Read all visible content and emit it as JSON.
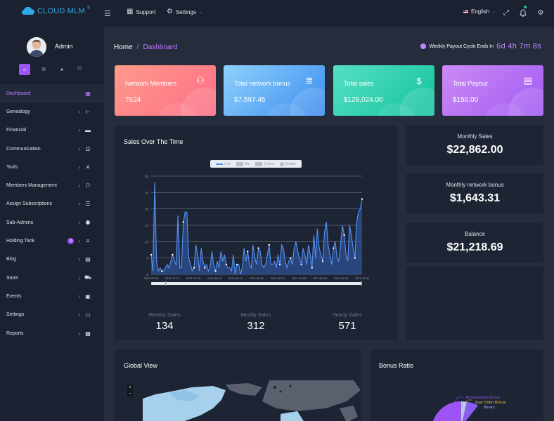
{
  "app": {
    "logo_text": "CLOUD MLM",
    "logo_mark": "®"
  },
  "topbar": {
    "support_label": "Support",
    "settings_label": "Settings",
    "language_label": "English"
  },
  "user": {
    "name": "Admin"
  },
  "sidebar": {
    "items": [
      {
        "label": "Dashboard",
        "icon": "grid-icon",
        "glyph": "▦",
        "active": true
      },
      {
        "label": "Genealogy",
        "icon": "tree-icon",
        "glyph": "⊢"
      },
      {
        "label": "Financial",
        "icon": "wallet-icon",
        "glyph": "▬"
      },
      {
        "label": "Communication",
        "icon": "headset-icon",
        "glyph": "Ω"
      },
      {
        "label": "Tools",
        "icon": "tools-icon",
        "glyph": "✕"
      },
      {
        "label": "Members Management",
        "icon": "users-cog-icon",
        "glyph": "⚇"
      },
      {
        "label": "Assign Subscriptions",
        "icon": "list-icon",
        "glyph": "☰"
      },
      {
        "label": "Sub-Admins",
        "icon": "user-shield-icon",
        "glyph": "⚉"
      },
      {
        "label": "Holding Tank",
        "icon": "database-icon",
        "glyph": "≡",
        "badge": "0"
      },
      {
        "label": "Blog",
        "icon": "blog-icon",
        "glyph": "▤"
      },
      {
        "label": "Store",
        "icon": "cart-icon",
        "glyph": "⛟"
      },
      {
        "label": "Events",
        "icon": "calendar-icon",
        "glyph": "▣"
      },
      {
        "label": "Settings",
        "icon": "monitor-icon",
        "glyph": "▭"
      },
      {
        "label": "Reports",
        "icon": "folder-icon",
        "glyph": "▩"
      }
    ]
  },
  "breadcrumb": {
    "home": "Home",
    "separator": "/",
    "current": "Dashboard"
  },
  "payout": {
    "label": "Weekly Payout Cycle Ends In",
    "timer": "6d 4h 7m 8s"
  },
  "cards": [
    {
      "label": "Network Members",
      "value": "7624",
      "icon": "network-icon",
      "from": "#fe9a8b",
      "to": "#fd6e86"
    },
    {
      "label": "Total network bonus",
      "value": "$7,597.45",
      "icon": "database-icon",
      "from": "#8ed0fb",
      "to": "#3d8ef0"
    },
    {
      "label": "Total sales",
      "value": "$128,024.00",
      "icon": "hand-coin-icon",
      "from": "#56dfc2",
      "to": "#13c39e"
    },
    {
      "label": "Total Payout",
      "value": "$150.00",
      "icon": "receipt-icon",
      "from": "#cc8bf5",
      "to": "#a15af2"
    }
  ],
  "sales_panel": {
    "title": "Sales Over The Time",
    "legend": [
      "Line",
      "Bar",
      "Dotted",
      "Bubble"
    ]
  },
  "chart_data": {
    "type": "area",
    "title": "",
    "ylim": [
      0,
      30
    ],
    "yticks": [
      0,
      5,
      10,
      15,
      20,
      25,
      30
    ],
    "xticks": [
      "2021-07-09",
      "2021-07-17",
      "2021-07-25",
      "2021-08-03",
      "2021-08-12",
      "2021-08-20",
      "2021-08-31",
      "2021-09-08",
      "2021-09-16",
      "2021-09-24",
      "2021-10-02"
    ],
    "series": [
      {
        "values": [
          6,
          1,
          28,
          4,
          1,
          2,
          1,
          1,
          2,
          3,
          2,
          4,
          6,
          4,
          3,
          18,
          2,
          2,
          16,
          19,
          19,
          5,
          3,
          1,
          2,
          9,
          6,
          1,
          8,
          4,
          2,
          3,
          1,
          2,
          7,
          3,
          1,
          4,
          2,
          7,
          4,
          6,
          3,
          2,
          2,
          1,
          6,
          0,
          3,
          3,
          0,
          2,
          8,
          4,
          7,
          3,
          2,
          9,
          5,
          3,
          8,
          7,
          3,
          2,
          3,
          6,
          9,
          3,
          3,
          4,
          2,
          6,
          3,
          9,
          8,
          4,
          2,
          4,
          5,
          3,
          8,
          10,
          7,
          5,
          3,
          8,
          6,
          3,
          9,
          6,
          2,
          12,
          5,
          14,
          8,
          6,
          4,
          13,
          16,
          9,
          6,
          3,
          8,
          10,
          5,
          4,
          9,
          15,
          12,
          6,
          4,
          15,
          12,
          8,
          5,
          16,
          19,
          20,
          23
        ]
      }
    ],
    "grid": true
  },
  "summary": [
    {
      "label": "Weekly Sales",
      "value": "134"
    },
    {
      "label": "Montly Sales",
      "value": "312"
    },
    {
      "label": "Yearly Sales",
      "value": "571"
    }
  ],
  "stats": [
    {
      "label": "Monthly Sales",
      "value": "$22,862.00"
    },
    {
      "label": "Monthly network bonus",
      "value": "$1,643.31"
    },
    {
      "label": "Balance",
      "value": "$21,218.69"
    }
  ],
  "global_view": {
    "title": "Global View",
    "zoom_in": "+",
    "zoom_out": "−"
  },
  "bonus_ratio": {
    "title": "Bonus Ratio",
    "legend": [
      "Achievement Bonus",
      "First Order Bonus",
      "Binary"
    ]
  }
}
